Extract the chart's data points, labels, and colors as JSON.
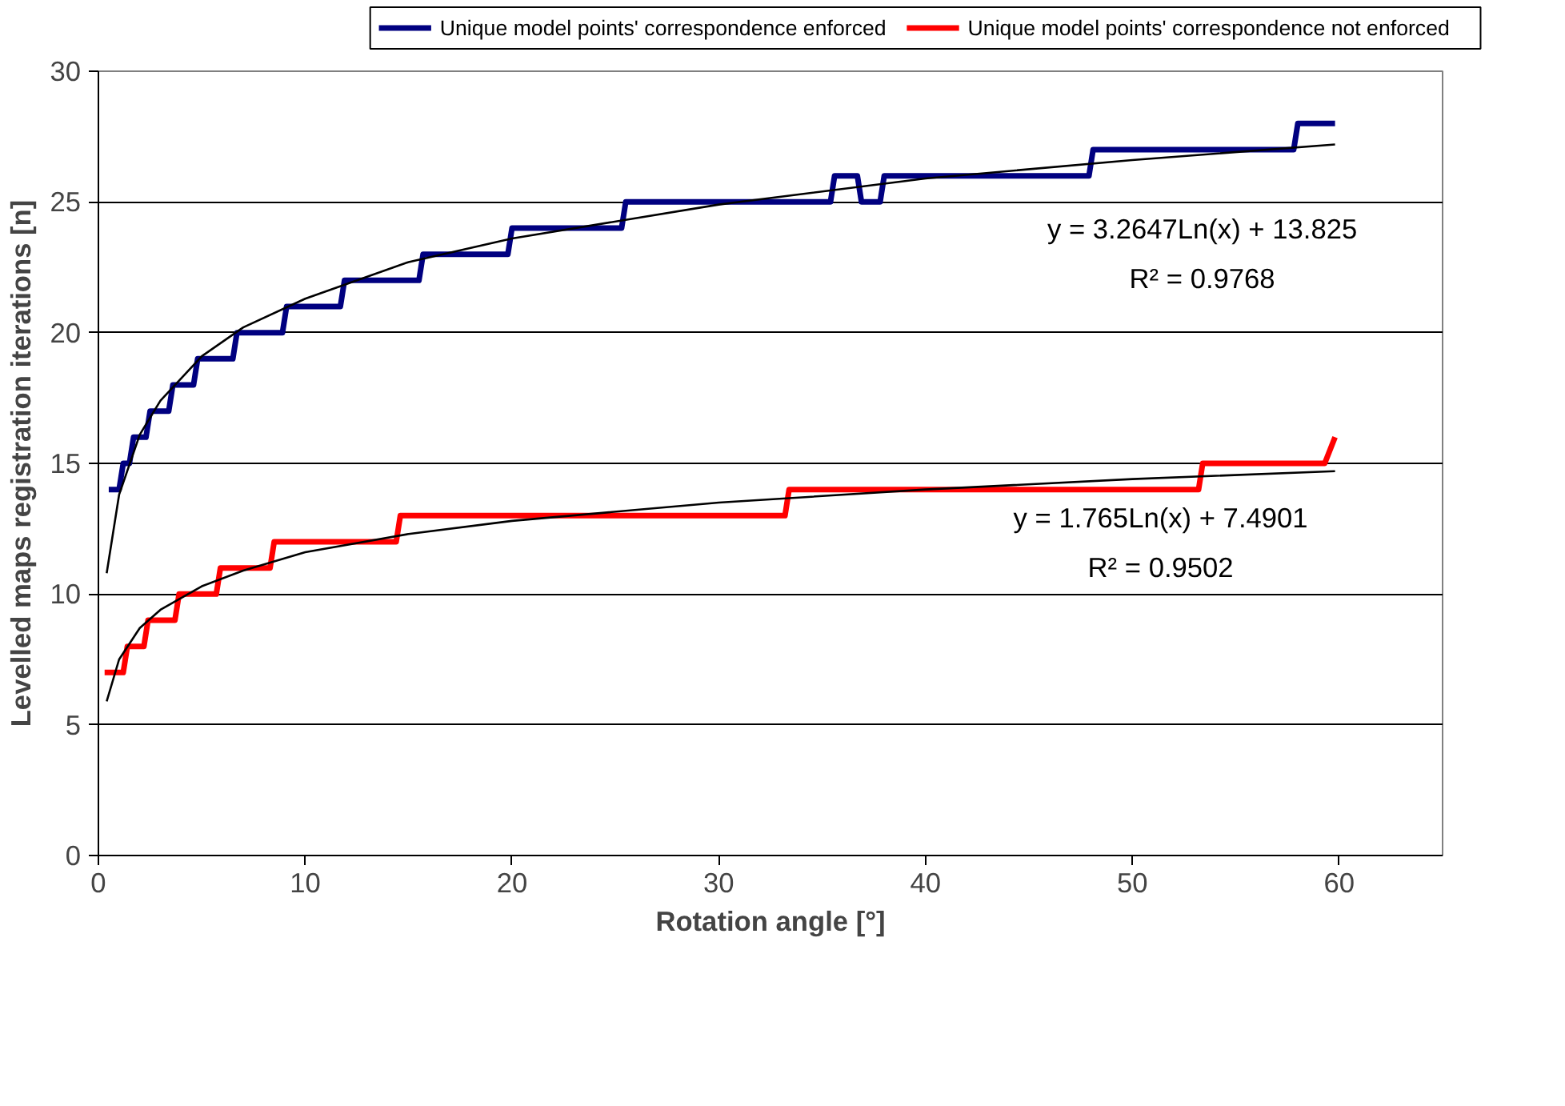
{
  "chart_data": {
    "type": "line",
    "xlabel": "Rotation angle [°]",
    "ylabel": "Levelled maps registration iterations [n]",
    "xlim": [
      0,
      65
    ],
    "xticks": [
      0,
      10,
      20,
      30,
      40,
      50,
      60
    ],
    "ylim": [
      0,
      30
    ],
    "yticks": [
      0,
      5,
      10,
      15,
      20,
      25,
      30
    ],
    "grid": "y",
    "legend": "top",
    "line_style": "solid",
    "marker": "none",
    "series": [
      {
        "name": "Unique model points' correspondence enforced",
        "color": "#000080",
        "x": [
          0.5,
          1.0,
          1.2,
          1.5,
          1.7,
          2.3,
          2.5,
          3.4,
          3.6,
          4.6,
          4.8,
          6.5,
          6.7,
          8.9,
          9.1,
          11.7,
          11.9,
          15.5,
          15.7,
          19.8,
          20.0,
          25.3,
          25.5,
          35.4,
          35.6,
          36.7,
          36.9,
          37.8,
          38.0,
          47.9,
          48.1,
          57.8,
          58.0,
          59.8
        ],
        "values": [
          14,
          14,
          15,
          15,
          16,
          16,
          17,
          17,
          18,
          18,
          19,
          19,
          20,
          20,
          21,
          21,
          22,
          22,
          23,
          23,
          24,
          24,
          25,
          25,
          26,
          26,
          25,
          25,
          26,
          26,
          27,
          27,
          28,
          28
        ]
      },
      {
        "name": "Unique model points' correspondence not enforced",
        "color": "#ff0000",
        "x": [
          0.3,
          1.2,
          1.4,
          2.2,
          2.4,
          3.7,
          3.9,
          5.7,
          5.9,
          8.3,
          8.5,
          14.4,
          14.6,
          33.2,
          33.4,
          53.2,
          53.4,
          59.3,
          59.8
        ],
        "values": [
          7,
          7,
          8,
          8,
          9,
          9,
          10,
          10,
          11,
          11,
          12,
          12,
          13,
          13,
          14,
          14,
          15,
          15,
          16
        ]
      },
      {
        "color": "#000000",
        "x": [
          0.4,
          1,
          2,
          3,
          5,
          7,
          10,
          15,
          20,
          30,
          40,
          50,
          59.8
        ],
        "values": [
          10.8,
          13.8,
          16.1,
          17.4,
          19.1,
          20.2,
          21.3,
          22.7,
          23.6,
          24.9,
          25.9,
          26.6,
          27.2
        ]
      },
      {
        "color": "#000000",
        "x": [
          0.4,
          1,
          2,
          3,
          5,
          7,
          10,
          15,
          20,
          30,
          40,
          50,
          59.8
        ],
        "values": [
          5.9,
          7.5,
          8.7,
          9.4,
          10.3,
          10.9,
          11.6,
          12.3,
          12.8,
          13.5,
          14.0,
          14.4,
          14.7
        ]
      }
    ],
    "annotations": [
      "y = 3.2647Ln(x) + 13.825",
      "R² = 0.9768",
      "y = 1.765Ln(x) + 7.4901",
      "R² = 0.9502"
    ]
  }
}
